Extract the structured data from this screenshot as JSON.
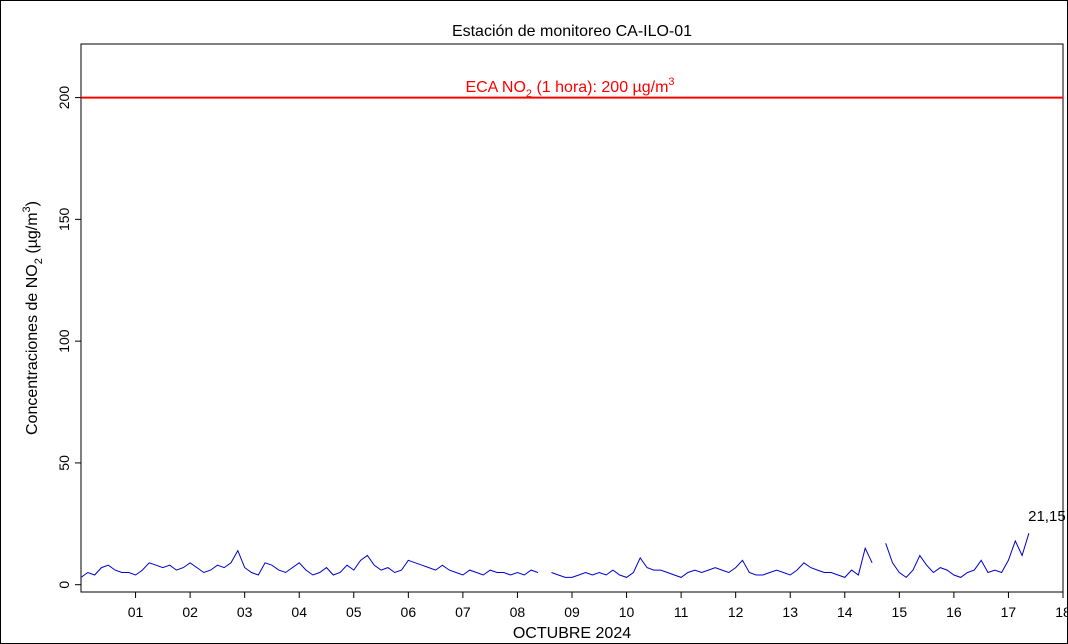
{
  "chart_data": {
    "type": "line",
    "title": "Estación de monitoreo  CA-ILO-01",
    "x_label": "OCTUBRE 2024",
    "y_label_parts": [
      "Concentraciones de NO",
      "2",
      " (µg/m",
      "3",
      ")"
    ],
    "hline": {
      "value": 200,
      "color": "#ff0000",
      "label_parts": [
        "ECA NO",
        "2",
        " (1 hora): 200 µg/m",
        "3"
      ]
    },
    "xlim": [
      0,
      18
    ],
    "ylim": [
      -3,
      222
    ],
    "yticks": [
      0,
      50,
      100,
      150,
      200
    ],
    "xticks": [
      {
        "value": 1,
        "label": "01"
      },
      {
        "value": 2,
        "label": "02"
      },
      {
        "value": 3,
        "label": "03"
      },
      {
        "value": 4,
        "label": "04"
      },
      {
        "value": 5,
        "label": "05"
      },
      {
        "value": 6,
        "label": "06"
      },
      {
        "value": 7,
        "label": "07"
      },
      {
        "value": 8,
        "label": "08"
      },
      {
        "value": 9,
        "label": "09"
      },
      {
        "value": 10,
        "label": "10"
      },
      {
        "value": 11,
        "label": "11"
      },
      {
        "value": 12,
        "label": "12"
      },
      {
        "value": 13,
        "label": "13"
      },
      {
        "value": 14,
        "label": "14"
      },
      {
        "value": 15,
        "label": "15"
      },
      {
        "value": 16,
        "label": "16"
      },
      {
        "value": 17,
        "label": "17"
      },
      {
        "value": 18,
        "label": "18"
      }
    ],
    "x": [
      0,
      0.125,
      0.25,
      0.375,
      0.5,
      0.625,
      0.75,
      0.875,
      1,
      1.125,
      1.25,
      1.375,
      1.5,
      1.625,
      1.75,
      1.875,
      2,
      2.125,
      2.25,
      2.375,
      2.5,
      2.625,
      2.75,
      2.875,
      3,
      3.125,
      3.25,
      3.375,
      3.5,
      3.625,
      3.75,
      3.875,
      4,
      4.125,
      4.25,
      4.375,
      4.5,
      4.625,
      4.75,
      4.875,
      5,
      5.125,
      5.25,
      5.375,
      5.5,
      5.625,
      5.75,
      5.875,
      6,
      6.125,
      6.25,
      6.375,
      6.5,
      6.625,
      6.75,
      6.875,
      7,
      7.125,
      7.25,
      7.375,
      7.5,
      7.625,
      7.75,
      7.875,
      8,
      8.125,
      8.25,
      8.375,
      8.5,
      8.625,
      8.75,
      8.875,
      9,
      9.125,
      9.25,
      9.375,
      9.5,
      9.625,
      9.75,
      9.875,
      10,
      10.125,
      10.25,
      10.375,
      10.5,
      10.625,
      10.75,
      10.875,
      11,
      11.125,
      11.25,
      11.375,
      11.5,
      11.625,
      11.75,
      11.875,
      12,
      12.125,
      12.25,
      12.375,
      12.5,
      12.625,
      12.75,
      12.875,
      13,
      13.125,
      13.25,
      13.375,
      13.5,
      13.625,
      13.75,
      13.875,
      14,
      14.125,
      14.25,
      14.375,
      14.5,
      14.625,
      14.75,
      14.875,
      15,
      15.125,
      15.25,
      15.375,
      15.5,
      15.625,
      15.75,
      15.875,
      16,
      16.125,
      16.25,
      16.375,
      16.5,
      16.625,
      16.75,
      16.875,
      17,
      17.125,
      17.25,
      17.375
    ],
    "series": [
      {
        "color": "#0000cc",
        "values": [
          3,
          5,
          4,
          7,
          8,
          6,
          5,
          5,
          4,
          6,
          9,
          8,
          7,
          8,
          6,
          7,
          9,
          7,
          5,
          6,
          8,
          7,
          9,
          14,
          7,
          5,
          4,
          9,
          8,
          6,
          5,
          7,
          9,
          6,
          4,
          5,
          7,
          4,
          5,
          8,
          6,
          10,
          12,
          8,
          6,
          7,
          5,
          6,
          10,
          9,
          8,
          7,
          6,
          8,
          6,
          5,
          4,
          6,
          5,
          4,
          6,
          5,
          5,
          4,
          5,
          4,
          6,
          5,
          null,
          5,
          4,
          3,
          3,
          4,
          5,
          4,
          5,
          4,
          6,
          4,
          3,
          5,
          11,
          7,
          6,
          6,
          5,
          4,
          3,
          5,
          6,
          5,
          6,
          7,
          6,
          5,
          7,
          10,
          5,
          4,
          4,
          5,
          6,
          5,
          4,
          6,
          9,
          7,
          6,
          5,
          5,
          4,
          3,
          6,
          4,
          15,
          9,
          null,
          17,
          9,
          5,
          3,
          6,
          12,
          8,
          5,
          7,
          6,
          4,
          3,
          5,
          6,
          10,
          5,
          6,
          5,
          10,
          18,
          12,
          21.15
        ],
        "value_labels": [
          null,
          null,
          null,
          null,
          null,
          null,
          null,
          null,
          null,
          null,
          null,
          null,
          null,
          null,
          null,
          null,
          null,
          null,
          null,
          null,
          null,
          null,
          null,
          null,
          null,
          null,
          null,
          null,
          null,
          null,
          null,
          null,
          null,
          null,
          null,
          null,
          null,
          null,
          null,
          null,
          null,
          null,
          null,
          null,
          null,
          null,
          null,
          null,
          null,
          null,
          null,
          null,
          null,
          null,
          null,
          null,
          null,
          null,
          null,
          null,
          null,
          null,
          null,
          null,
          null,
          null,
          null,
          null,
          null,
          null,
          null,
          null,
          null,
          null,
          null,
          null,
          null,
          null,
          null,
          null,
          null,
          null,
          null,
          null,
          null,
          null,
          null,
          null,
          null,
          null,
          null,
          null,
          null,
          null,
          null,
          null,
          null,
          null,
          null,
          null,
          null,
          null,
          null,
          null,
          null,
          null,
          null,
          null,
          null,
          null,
          null,
          null,
          null,
          null,
          null,
          null,
          null,
          null,
          null,
          null,
          null,
          null,
          null,
          null,
          null,
          null,
          null,
          null,
          null,
          null,
          null,
          null,
          null,
          null,
          null,
          null,
          null,
          null,
          null,
          "21,15"
        ]
      }
    ]
  }
}
